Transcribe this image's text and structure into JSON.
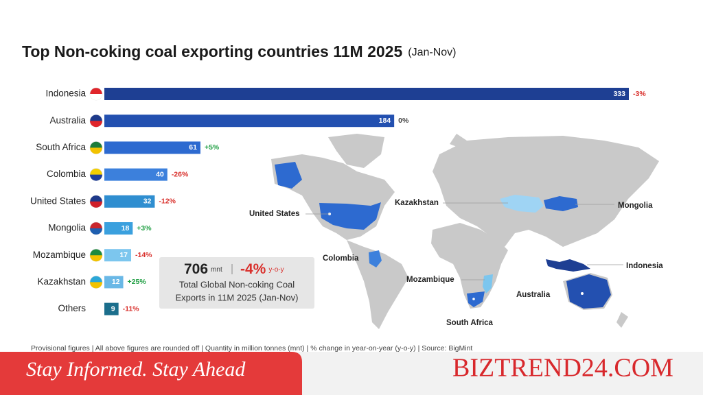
{
  "chart_data": {
    "type": "bar",
    "orientation": "horizontal",
    "title": "Top Non-coking coal exporting countries 11M 2025",
    "subtitle": "(Jan-Nov)",
    "categories": [
      "Indonesia",
      "Australia",
      "South Africa",
      "Colombia",
      "United States",
      "Mongolia",
      "Mozambique",
      "Kazakhstan",
      "Others"
    ],
    "values": [
      333,
      184,
      61,
      40,
      32,
      18,
      17,
      12,
      9
    ],
    "colors": [
      "#1e3f93",
      "#2350b0",
      "#2d6ad0",
      "#3c80dc",
      "#2f8ed0",
      "#3aa0de",
      "#7cc6ee",
      "#6ab8e6",
      "#1b6e8c"
    ],
    "changes": [
      -3,
      0,
      5,
      -26,
      -12,
      3,
      -14,
      25,
      -11
    ],
    "change_labels": [
      "-3%",
      "0%",
      "+5%",
      "-26%",
      "-12%",
      "+3%",
      "-14%",
      "+25%",
      "-11%"
    ]
  },
  "summary": {
    "total": 706,
    "unit": "mnt",
    "change": -4,
    "change_label": "-4%",
    "change_unit": "y-o-y",
    "caption_line1": "Total Global Non-coking Coal",
    "caption_line2": "Exports in 11M 2025 (Jan-Nov)"
  },
  "map_labels": [
    "United States",
    "Kazakhstan",
    "Mongolia",
    "Colombia",
    "Mozambique",
    "Indonesia",
    "Australia",
    "South Africa"
  ],
  "footnote": "Provisional figures  |  All above figures are rounded off  |  Quantity in million tonnes (mnt)  |  % change in year-on-year (y-o-y)  |  Source: BigMint",
  "banner": {
    "tagline": "Stay Informed. Stay Ahead",
    "brand": "BIZTREND24.COM"
  }
}
